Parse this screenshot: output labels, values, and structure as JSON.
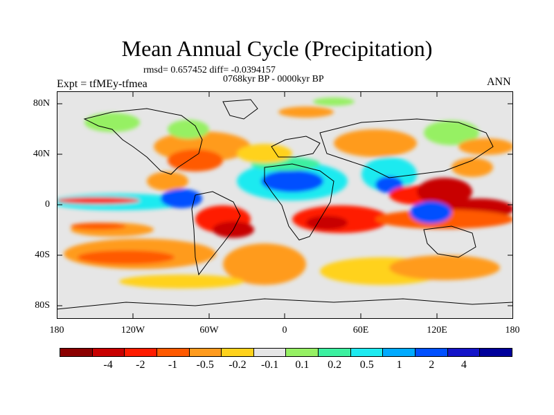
{
  "title": "Mean Annual Cycle (Precipitation)",
  "stats": "rmsd= 0.657452 diff= -0.0394157",
  "period": "0768kyr BP - 0000kyr BP",
  "experiment": "Expt = tfMEy-tfmea",
  "season": "ANN",
  "axes": {
    "y_labels": [
      "80N",
      "40N",
      "0",
      "40S",
      "80S"
    ],
    "x_labels": [
      "180",
      "120W",
      "60W",
      "0",
      "60E",
      "120E",
      "180"
    ]
  },
  "colorbar": {
    "colors": [
      "#8b0000",
      "#c80000",
      "#ff1c00",
      "#ff5a00",
      "#ff9b1e",
      "#ffd21c",
      "#e6e6e6",
      "#96f064",
      "#3cf0a0",
      "#1eeaf0",
      "#00aaff",
      "#0050ff",
      "#1414c8",
      "#00009b"
    ],
    "labels": [
      "-4",
      "-2",
      "-1",
      "-0.5",
      "-0.2",
      "-0.1",
      "0.1",
      "0.2",
      "0.5",
      "1",
      "2",
      "4"
    ]
  }
}
